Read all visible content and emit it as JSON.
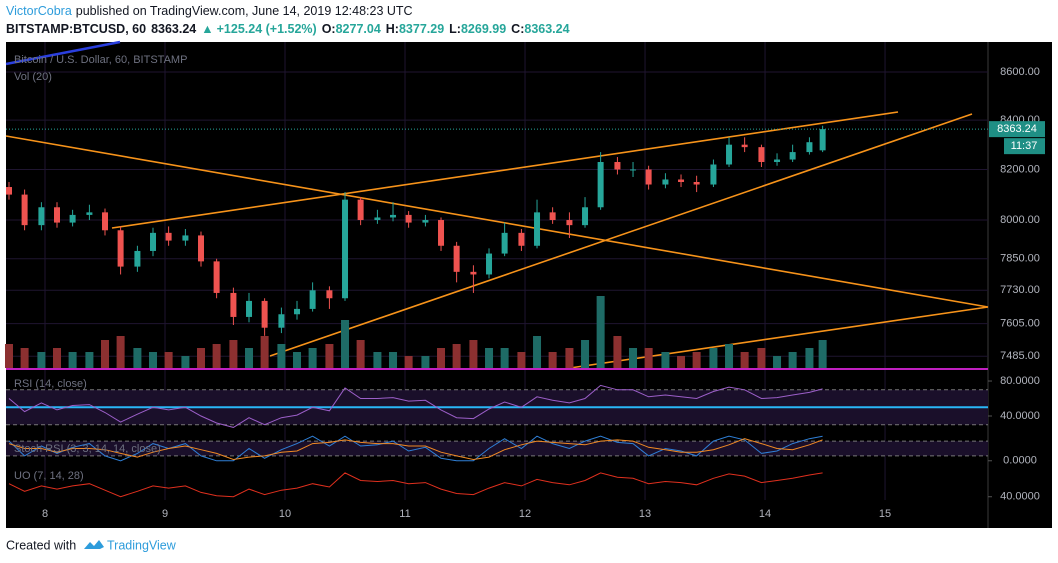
{
  "header": {
    "author": "VictorCobra",
    "published": "published on TradingView.com, June 14, 2019 12:48:23 UTC",
    "symbol": "BITSTAMP:BTCUSD, 60",
    "price": "8363.24",
    "arrow": "▲",
    "change": "+125.24 (+1.52%)",
    "ohlc": [
      {
        "label": "O:",
        "value": "8277.04"
      },
      {
        "label": "H:",
        "value": "8377.29"
      },
      {
        "label": "L:",
        "value": "8269.99"
      },
      {
        "label": "C:",
        "value": "8363.24"
      }
    ]
  },
  "chart_data": [
    {
      "type": "candlestick",
      "title": "Bitcoin / U.S. Dollar, 60, BITSTAMP",
      "volume_title": "Vol (20)",
      "log_scale": true,
      "grid": true,
      "up_color": "#26a69a",
      "down_color": "#ef5350",
      "volume_up_color": "#1e6b66",
      "volume_down_color": "#8c3030",
      "xlim": [
        7.675,
        15.858
      ],
      "xticks": [
        8,
        9,
        10,
        11,
        12,
        13,
        14,
        15
      ],
      "ylim": [
        7442,
        8727
      ],
      "yticks": [
        {
          "value": 7485,
          "label": "7485.00"
        },
        {
          "value": 7605,
          "label": "7605.00"
        },
        {
          "value": 7730,
          "label": "7730.00"
        },
        {
          "value": 7850,
          "label": "7850.00"
        },
        {
          "value": 8000,
          "label": "8000.00"
        },
        {
          "value": 8200,
          "label": "8200.00"
        },
        {
          "value": 8400,
          "label": "8400.00"
        },
        {
          "value": 8600,
          "label": "8600.00"
        }
      ],
      "last_price": {
        "value": 8363.24,
        "label": "8363.24"
      },
      "countdown": "11:37",
      "volume_lim": [
        0,
        100
      ],
      "x": [
        7.7,
        7.83,
        7.97,
        8.1,
        8.23,
        8.37,
        8.5,
        8.63,
        8.77,
        8.9,
        9.03,
        9.17,
        9.3,
        9.43,
        9.57,
        9.7,
        9.83,
        9.97,
        10.1,
        10.23,
        10.37,
        10.5,
        10.63,
        10.77,
        10.9,
        11.03,
        11.17,
        11.3,
        11.43,
        11.57,
        11.7,
        11.83,
        11.97,
        12.1,
        12.23,
        12.37,
        12.5,
        12.63,
        12.77,
        12.9,
        13.03,
        13.17,
        13.3,
        13.43,
        13.57,
        13.7,
        13.83,
        13.97,
        14.1,
        14.23,
        14.37,
        14.48
      ],
      "open": [
        8130,
        8100,
        7980,
        8050,
        7990,
        8020,
        8030,
        7960,
        7820,
        7880,
        7950,
        7920,
        7940,
        7840,
        7720,
        7630,
        7690,
        7590,
        7640,
        7660,
        7730,
        7700,
        8080,
        8000,
        8010,
        8020,
        7990,
        8000,
        7900,
        7800,
        7790,
        7870,
        7950,
        7900,
        8030,
        8000,
        7980,
        8050,
        8230,
        8200,
        8200,
        8140,
        8160,
        8150,
        8140,
        8220,
        8300,
        8290,
        8230,
        8240,
        8270,
        8277.04
      ],
      "high": [
        8150,
        8120,
        8070,
        8070,
        8040,
        8060,
        8045,
        7975,
        7900,
        7970,
        7975,
        7965,
        7955,
        7850,
        7740,
        7720,
        7700,
        7665,
        7690,
        7760,
        7745,
        8110,
        8090,
        8040,
        8070,
        8035,
        8020,
        8010,
        7915,
        7825,
        7890,
        7990,
        7965,
        8080,
        8050,
        8030,
        8090,
        8270,
        8250,
        8230,
        8215,
        8185,
        8180,
        8175,
        8240,
        8330,
        8330,
        8300,
        8265,
        8300,
        8330,
        8377.29
      ],
      "low": [
        8080,
        7960,
        7960,
        7970,
        7975,
        8000,
        7940,
        7790,
        7800,
        7860,
        7900,
        7900,
        7820,
        7700,
        7600,
        7610,
        7560,
        7570,
        7620,
        7650,
        7660,
        7690,
        7980,
        7985,
        7995,
        7970,
        7975,
        7880,
        7760,
        7720,
        7775,
        7860,
        7880,
        7890,
        7985,
        7930,
        7970,
        8040,
        8180,
        8170,
        8120,
        8125,
        8130,
        8110,
        8130,
        8210,
        8270,
        8210,
        8215,
        8230,
        8260,
        8269.99
      ],
      "close": [
        8100,
        7980,
        8050,
        7990,
        8020,
        8030,
        7960,
        7820,
        7880,
        7950,
        7920,
        7940,
        7840,
        7720,
        7630,
        7690,
        7590,
        7640,
        7660,
        7730,
        7700,
        8080,
        8000,
        8010,
        8020,
        7990,
        8000,
        7900,
        7800,
        7790,
        7870,
        7950,
        7900,
        8030,
        8000,
        7980,
        8050,
        8230,
        8200,
        8200,
        8140,
        8160,
        8150,
        8140,
        8220,
        8300,
        8290,
        8230,
        8240,
        8270,
        8310,
        8363.24
      ],
      "volume": [
        30,
        25,
        20,
        25,
        20,
        20,
        35,
        40,
        25,
        20,
        20,
        15,
        25,
        30,
        35,
        25,
        40,
        30,
        20,
        25,
        30,
        60,
        35,
        20,
        20,
        15,
        15,
        25,
        30,
        35,
        25,
        25,
        20,
        40,
        20,
        25,
        35,
        90,
        40,
        25,
        25,
        20,
        15,
        20,
        25,
        30,
        20,
        25,
        15,
        20,
        25,
        35
      ]
    },
    {
      "type": "line",
      "title": "RSI (14, close)",
      "ylim": [
        21.7,
        92.6
      ],
      "yticks": [
        {
          "value": 80,
          "label": "80.0000"
        },
        {
          "value": 40,
          "label": "40.0000"
        }
      ],
      "levels": [
        70,
        30
      ],
      "reference_line": 50,
      "series": [
        {
          "name": "RSI",
          "color": "#9c5fc9",
          "values": [
            60,
            45,
            55,
            47,
            52,
            53,
            44,
            33,
            42,
            50,
            47,
            50,
            40,
            32,
            27,
            38,
            30,
            38,
            41,
            50,
            46,
            72,
            60,
            60,
            61,
            57,
            58,
            47,
            38,
            37,
            48,
            56,
            50,
            62,
            58,
            55,
            60,
            75,
            70,
            70,
            62,
            64,
            62,
            60,
            68,
            73,
            70,
            60,
            61,
            64,
            67,
            71
          ]
        }
      ]
    },
    {
      "type": "line",
      "title": "Stoch RSI (3, 3, 14, 14, close)",
      "ylim": [
        -5,
        105
      ],
      "yticks": [
        {
          "value": 0,
          "label": "0.0000"
        }
      ],
      "levels": [
        80,
        20
      ],
      "series": [
        {
          "name": "K",
          "color": "#2f7fd6",
          "values": [
            80,
            20,
            60,
            30,
            55,
            70,
            20,
            0,
            30,
            70,
            50,
            70,
            20,
            0,
            0,
            50,
            10,
            45,
            70,
            100,
            60,
            100,
            60,
            65,
            80,
            40,
            55,
            10,
            0,
            0,
            50,
            90,
            50,
            100,
            70,
            50,
            80,
            100,
            75,
            70,
            20,
            50,
            40,
            20,
            80,
            100,
            85,
            30,
            40,
            70,
            90,
            100
          ]
        },
        {
          "name": "D",
          "color": "#f08a24",
          "values": [
            70,
            50,
            50,
            35,
            50,
            50,
            45,
            30,
            15,
            35,
            50,
            60,
            45,
            30,
            5,
            15,
            20,
            35,
            40,
            70,
            75,
            85,
            75,
            70,
            70,
            60,
            60,
            35,
            20,
            5,
            15,
            45,
            65,
            80,
            75,
            70,
            65,
            80,
            85,
            80,
            55,
            45,
            35,
            35,
            45,
            65,
            90,
            70,
            50,
            45,
            65,
            85
          ]
        }
      ]
    },
    {
      "type": "line",
      "title": "UO (7, 14, 28)",
      "ylim": [
        37,
        72
      ],
      "yticks": [
        {
          "value": 40,
          "label": "40.0000"
        }
      ],
      "series": [
        {
          "name": "UO",
          "color": "#e0301e",
          "values": [
            52,
            45,
            50,
            47,
            50,
            52,
            46,
            40,
            45,
            50,
            48,
            50,
            44,
            41,
            40,
            47,
            42,
            46,
            48,
            52,
            49,
            62,
            55,
            54,
            55,
            52,
            53,
            47,
            43,
            42,
            48,
            53,
            50,
            56,
            53,
            51,
            55,
            62,
            58,
            57,
            52,
            54,
            53,
            51,
            57,
            61,
            59,
            53,
            55,
            57,
            60,
            62
          ]
        }
      ]
    }
  ],
  "footer": {
    "created": "Created with",
    "brand": "TradingView"
  }
}
